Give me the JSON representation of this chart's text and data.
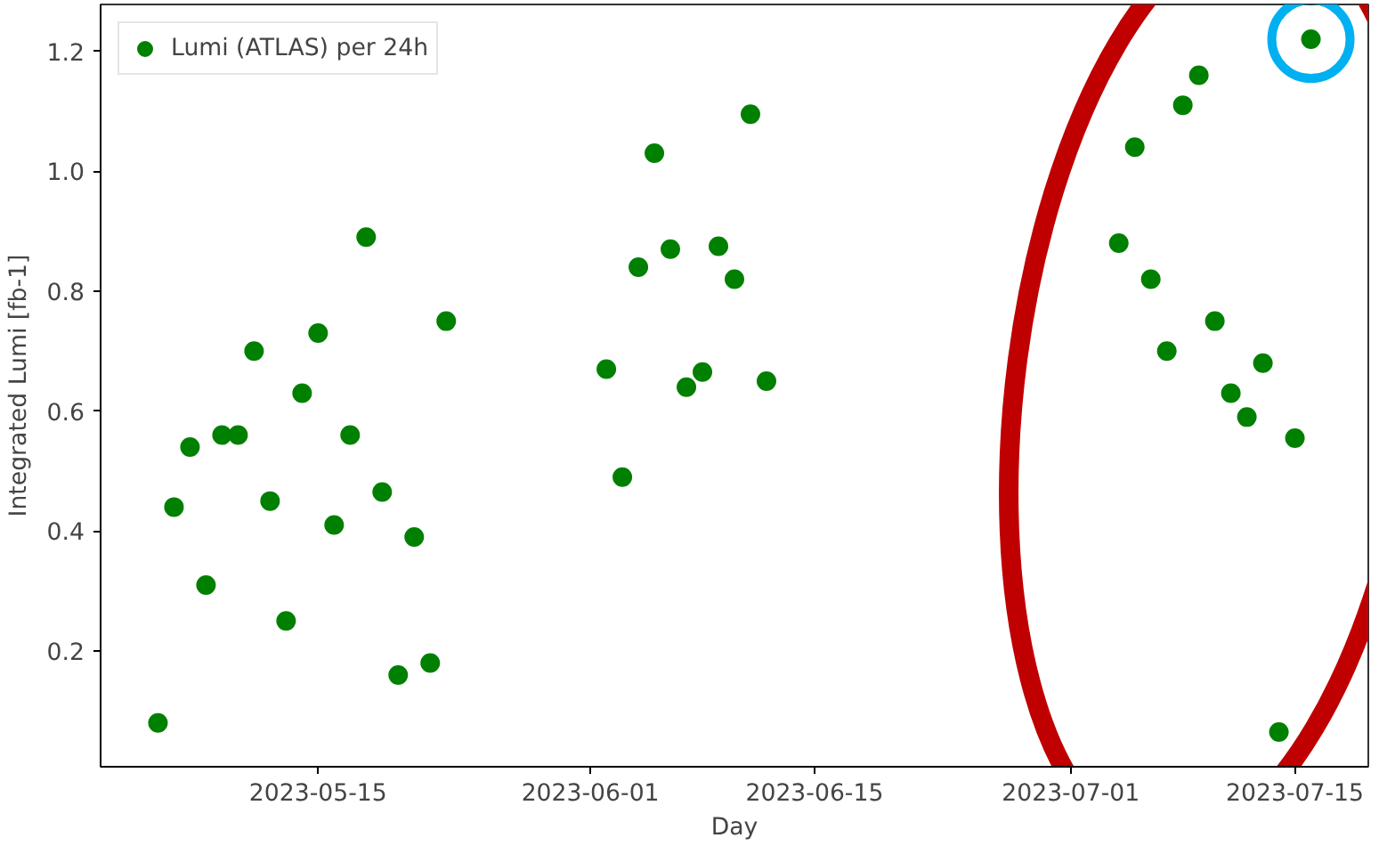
{
  "chart_data": {
    "type": "scatter",
    "xlabel": "Day",
    "ylabel": "Integrated Lumi [fb-1]",
    "x": [
      "2023-05-05",
      "2023-05-06",
      "2023-05-07",
      "2023-05-08",
      "2023-05-09",
      "2023-05-10",
      "2023-05-11",
      "2023-05-12",
      "2023-05-13",
      "2023-05-14",
      "2023-05-15",
      "2023-05-16",
      "2023-05-17",
      "2023-05-18",
      "2023-05-19",
      "2023-05-20",
      "2023-05-21",
      "2023-05-22",
      "2023-05-23",
      "2023-06-02",
      "2023-06-03",
      "2023-06-04",
      "2023-06-05",
      "2023-06-06",
      "2023-06-07",
      "2023-06-08",
      "2023-06-09",
      "2023-06-10",
      "2023-06-11",
      "2023-06-12",
      "2023-07-04",
      "2023-07-05",
      "2023-07-06",
      "2023-07-07",
      "2023-07-08",
      "2023-07-09",
      "2023-07-10",
      "2023-07-11",
      "2023-07-12",
      "2023-07-13",
      "2023-07-14",
      "2023-07-15",
      "2023-07-16"
    ],
    "series": [
      {
        "name": "Lumi (ATLAS) per 24h",
        "color": "#008000",
        "values": [
          0.08,
          0.44,
          0.54,
          0.31,
          0.56,
          0.56,
          0.7,
          0.45,
          0.25,
          0.63,
          0.73,
          0.41,
          0.56,
          0.89,
          0.465,
          0.16,
          0.39,
          0.18,
          0.75,
          0.67,
          0.49,
          0.84,
          1.03,
          0.87,
          0.64,
          0.665,
          0.875,
          0.82,
          1.095,
          0.65,
          0.88,
          1.04,
          0.82,
          0.7,
          1.11,
          1.16,
          0.75,
          0.63,
          0.59,
          0.68,
          0.065,
          0.555,
          1.22
        ]
      }
    ],
    "xlim": [
      "2023-05-01T10:00",
      "2023-07-19T14:00"
    ],
    "xticks": [
      "2023-05-15",
      "2023-06-01",
      "2023-06-15",
      "2023-07-01",
      "2023-07-15"
    ],
    "ylim": [
      0.007,
      1.278
    ],
    "yticks": [
      {
        "value": 0.2,
        "label": "0.2"
      },
      {
        "value": 0.4,
        "label": "0.4"
      },
      {
        "value": 0.6,
        "label": "0.6"
      },
      {
        "value": 0.8,
        "label": "0.8"
      },
      {
        "value": 1.0,
        "label": "1.0"
      },
      {
        "value": 1.2,
        "label": "1.2"
      }
    ],
    "legend": "top left",
    "grid": false,
    "marker": "circle"
  }
}
